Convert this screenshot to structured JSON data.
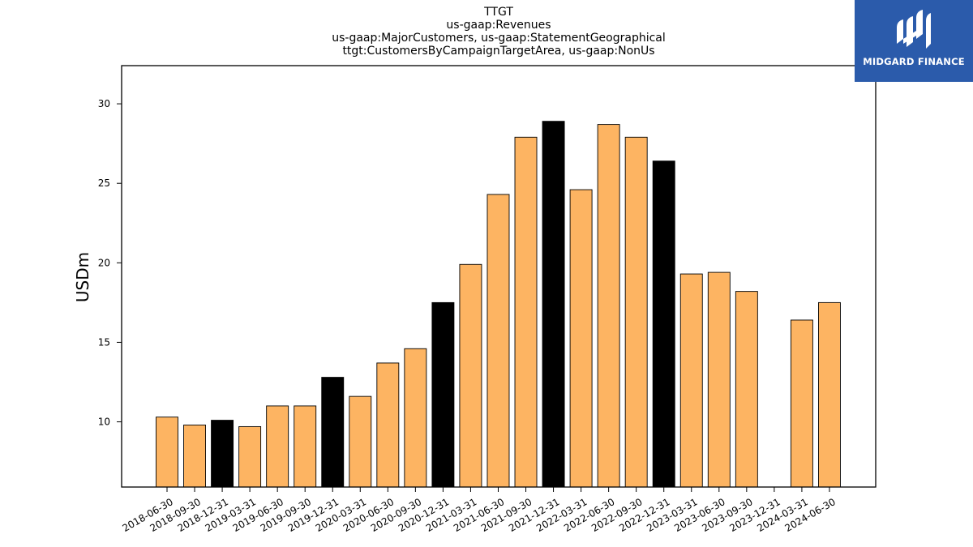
{
  "chart_data": {
    "type": "bar",
    "title_lines": [
      "TTGT",
      "us-gaap:Revenues",
      "us-gaap:MajorCustomers, us-gaap:StatementGeographical",
      "ttgt:CustomersByCampaignTargetArea, us-gaap:NonUs"
    ],
    "ylabel": "USDm",
    "xlabel": "",
    "ylim": [
      5.9,
      32.4
    ],
    "yticks": [
      10,
      15,
      20,
      25,
      30
    ],
    "categories": [
      "2018-06-30",
      "2018-09-30",
      "2018-12-31",
      "2019-03-31",
      "2019-06-30",
      "2019-09-30",
      "2019-12-31",
      "2020-03-31",
      "2020-06-30",
      "2020-09-30",
      "2020-12-31",
      "2021-03-31",
      "2021-06-30",
      "2021-09-30",
      "2021-12-31",
      "2022-03-31",
      "2022-06-30",
      "2022-09-30",
      "2022-12-31",
      "2023-03-31",
      "2023-06-30",
      "2023-09-30",
      "2023-12-31",
      "2024-03-31",
      "2024-06-30"
    ],
    "values": [
      10.3,
      9.8,
      10.1,
      9.7,
      11.0,
      11.0,
      12.8,
      11.6,
      13.7,
      14.6,
      17.5,
      19.9,
      24.3,
      27.9,
      28.9,
      24.6,
      28.7,
      27.9,
      26.4,
      19.3,
      19.4,
      18.2,
      null,
      16.4,
      17.5
    ],
    "highlight": [
      false,
      false,
      true,
      false,
      false,
      false,
      true,
      false,
      false,
      false,
      true,
      false,
      false,
      false,
      true,
      false,
      false,
      false,
      true,
      false,
      false,
      false,
      false,
      false,
      false
    ],
    "colors": {
      "bar": "#fdb462",
      "highlight": "#000000",
      "edge": "#000000"
    },
    "grid": false,
    "legend": "none"
  },
  "logo": {
    "text": "MIDGARD FINANCE",
    "background": "#2b5bab",
    "icon": "midgard-logo-icon"
  }
}
